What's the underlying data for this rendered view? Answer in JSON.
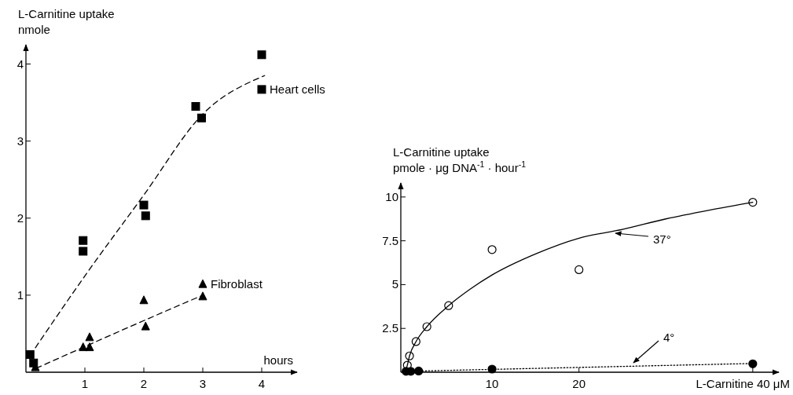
{
  "chart_data": [
    {
      "type": "scatter",
      "xlabel": "hours",
      "ylabel": "L-Carnitine uptake\nnmole",
      "xlim": [
        0,
        4.6
      ],
      "ylim": [
        0,
        4.25
      ],
      "xticks": [
        1,
        2,
        3,
        4
      ],
      "yticks": [
        1,
        2,
        3,
        4
      ],
      "legend": false,
      "grid": false,
      "series": [
        {
          "name": "Heart cells",
          "type": "scatter",
          "marker": "square",
          "color": "#000000",
          "x": [
            0.07,
            0.13,
            0.97,
            0.97,
            2.0,
            2.03,
            2.88,
            2.98,
            4.0,
            4.0
          ],
          "values": [
            0.23,
            0.12,
            1.71,
            1.57,
            2.17,
            2.03,
            3.45,
            3.3,
            4.12,
            3.67
          ]
        },
        {
          "type": "line",
          "line_style": "dashed",
          "color": "#000000",
          "x": [
            0.1,
            1,
            2,
            3,
            4.05
          ],
          "values": [
            0.25,
            1.25,
            2.3,
            3.35,
            3.85
          ]
        },
        {
          "name": "Fibroblast",
          "type": "scatter",
          "marker": "triangle",
          "color": "#000000",
          "x": [
            0.16,
            0.97,
            1.08,
            1.08,
            2.0,
            2.03,
            3.0,
            3.0
          ],
          "values": [
            0.06,
            0.32,
            0.32,
            0.45,
            0.93,
            0.59,
            0.98,
            1.14
          ]
        },
        {
          "type": "line",
          "line_style": "dashed",
          "color": "#000000",
          "x": [
            0.17,
            1.05,
            2.0,
            3.0
          ],
          "values": [
            0.05,
            0.35,
            0.67,
            1.0
          ]
        }
      ]
    },
    {
      "type": "scatter",
      "xlabel": "L-Carnitine 40 μM",
      "ylabel": "L-Carnitine uptake\npmole · μg DNA$^{-1}$ · hour$^{-1}$",
      "xlim": [
        -0.5,
        43
      ],
      "ylim": [
        0,
        10.8
      ],
      "xticks": [
        10,
        20,
        {
          "value": 40,
          "label": null
        }
      ],
      "yticks": [
        2.5,
        5,
        7.5,
        10
      ],
      "legend": false,
      "grid": false,
      "annotations": [
        "37°",
        "4°"
      ],
      "series": [
        {
          "type": "scatter",
          "marker": "circle",
          "color": "#ffffff",
          "x": [
            0.25,
            0.5,
            1.25,
            2.5,
            5,
            10,
            20,
            40
          ],
          "values": [
            0.4,
            0.93,
            1.75,
            2.6,
            3.8,
            7.0,
            5.85,
            9.7
          ]
        },
        {
          "type": "line",
          "line_style": "solid",
          "color": "#000000",
          "x": [
            0,
            0.25,
            0.5,
            1.25,
            2.5,
            5,
            7.5,
            10,
            15,
            20,
            25,
            30,
            35,
            40
          ],
          "values": [
            0,
            0.4,
            0.93,
            1.75,
            2.6,
            3.8,
            4.75,
            5.55,
            6.75,
            7.65,
            8.15,
            8.75,
            9.25,
            9.7
          ]
        },
        {
          "type": "scatter",
          "marker": "circle",
          "color": "#000000",
          "x": [
            0.1,
            0.65,
            1.55,
            10,
            40
          ],
          "values": [
            0.05,
            0.05,
            0.07,
            0.18,
            0.48
          ]
        },
        {
          "type": "line",
          "line_style": "dotted",
          "color": "#000000",
          "x": [
            0,
            40
          ],
          "values": [
            0.05,
            0.5
          ]
        }
      ]
    }
  ]
}
